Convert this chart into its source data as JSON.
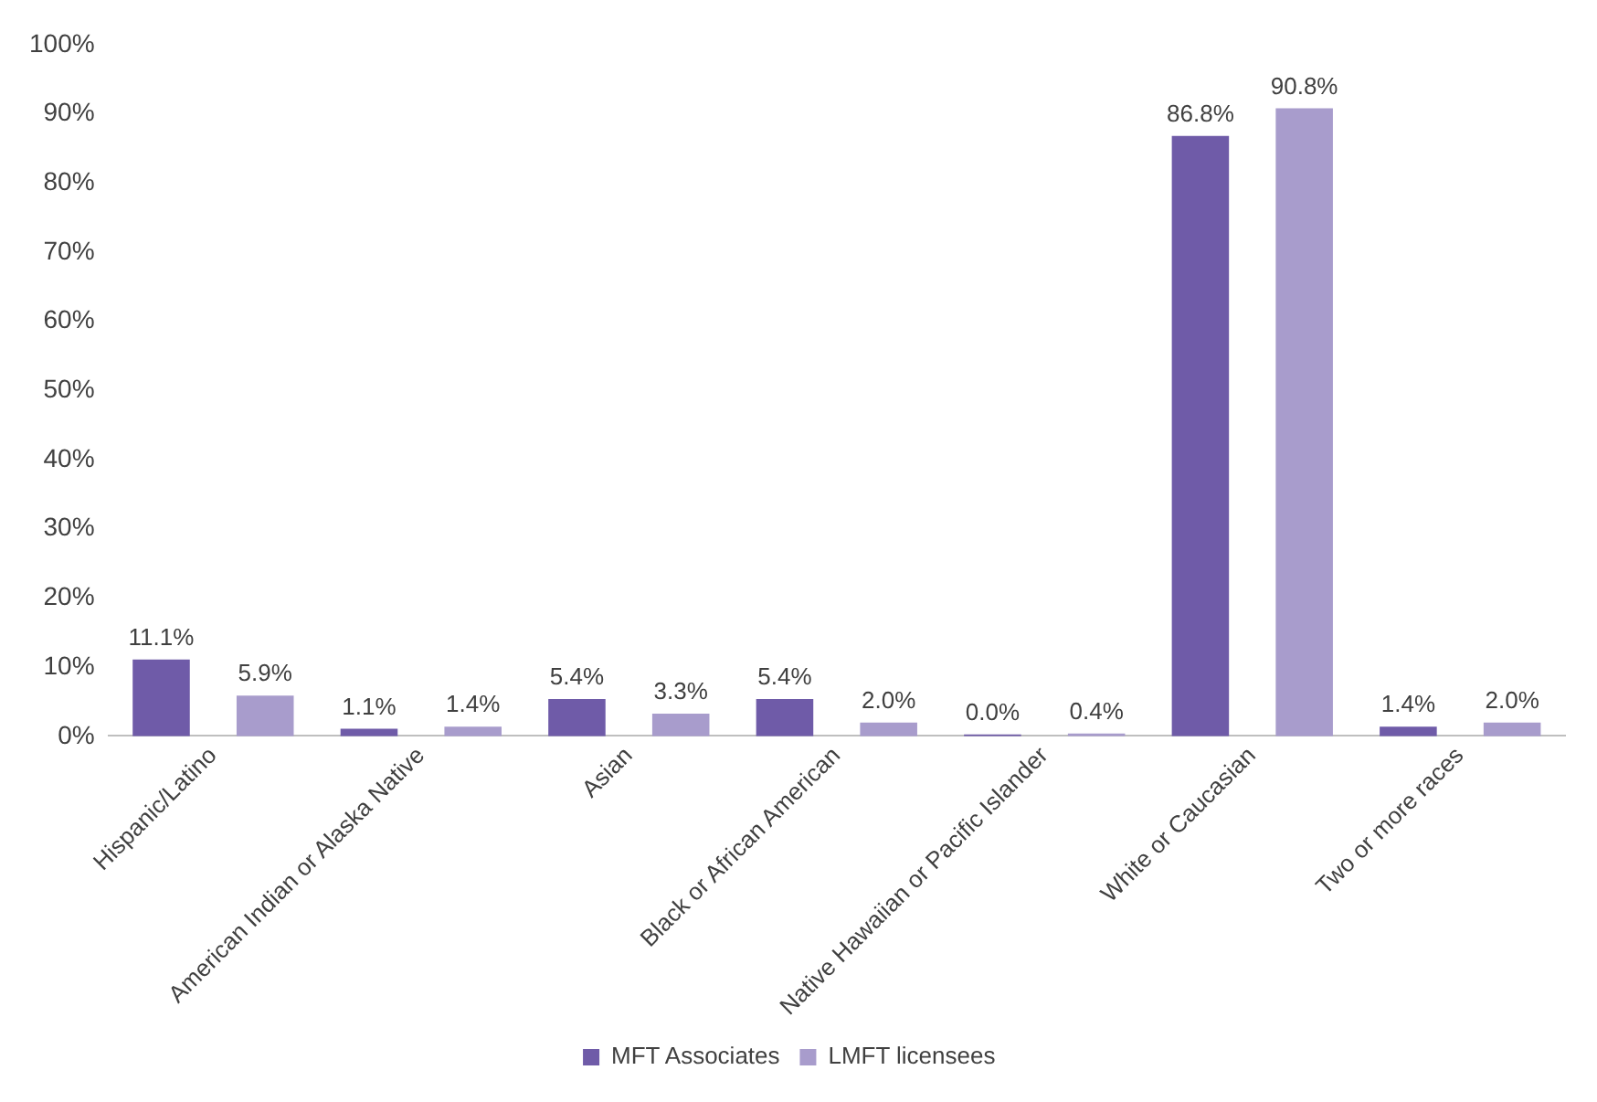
{
  "chart_data": {
    "type": "bar",
    "categories": [
      "Hispanic/Latino",
      "American Indian or Alaska Native",
      "Asian",
      "Black or African American",
      "Native Hawaiian or Pacific Islander",
      "White or Caucasian",
      "Two or more races"
    ],
    "series": [
      {
        "name": "MFT Associates",
        "color": "#6f5ba8",
        "values": [
          11.1,
          1.1,
          5.4,
          5.4,
          0.0,
          86.8,
          1.4
        ],
        "value_labels": [
          "11.1%",
          "1.1%",
          "5.4%",
          "5.4%",
          "0.0%",
          "86.8%",
          "1.4%"
        ]
      },
      {
        "name": "LMFT licensees",
        "color": "#a89ccc",
        "values": [
          5.9,
          1.4,
          3.3,
          2.0,
          0.4,
          90.8,
          2.0
        ],
        "value_labels": [
          "5.9%",
          "1.4%",
          "3.3%",
          "2.0%",
          "0.4%",
          "90.8%",
          "2.0%"
        ]
      }
    ],
    "ylim": [
      0,
      100
    ],
    "yticks": [
      {
        "value": 0,
        "label": "0%"
      },
      {
        "value": 10,
        "label": "10%"
      },
      {
        "value": 20,
        "label": "20%"
      },
      {
        "value": 30,
        "label": "30%"
      },
      {
        "value": 40,
        "label": "40%"
      },
      {
        "value": 50,
        "label": "50%"
      },
      {
        "value": 60,
        "label": "60%"
      },
      {
        "value": 70,
        "label": "70%"
      },
      {
        "value": 80,
        "label": "80%"
      },
      {
        "value": 90,
        "label": "90%"
      },
      {
        "value": 100,
        "label": "100%"
      }
    ],
    "legend": "bottom"
  }
}
